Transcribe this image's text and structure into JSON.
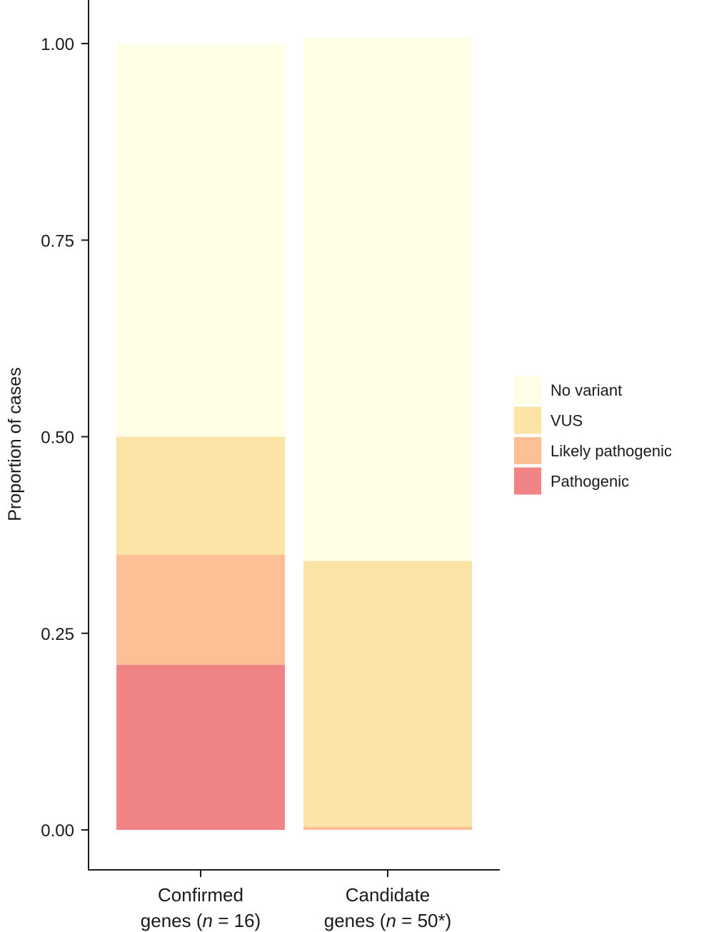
{
  "chart_data": {
    "type": "bar",
    "stacked": true,
    "title": "",
    "xlabel": "",
    "ylabel": "Proportion of cases",
    "ylim": [
      -0.05,
      1.05
    ],
    "yticks": [
      {
        "value": 0.0,
        "label": "0.00"
      },
      {
        "value": 0.25,
        "label": "0.25"
      },
      {
        "value": 0.5,
        "label": "0.50"
      },
      {
        "value": 0.75,
        "label": "0.75"
      },
      {
        "value": 1.0,
        "label": "1.00"
      }
    ],
    "categories": [
      {
        "line1": "Confirmed",
        "prefix": "genes (",
        "n_label": "n",
        "suffix": " = 16)"
      },
      {
        "line1": "Candidate",
        "prefix": "genes (",
        "n_label": "n",
        "suffix": " = 50*)"
      }
    ],
    "series": [
      {
        "name": "Pathogenic",
        "color": "#f08383",
        "values": [
          0.21,
          0.0
        ]
      },
      {
        "name": "Likely pathogenic",
        "color": "#fcbf96",
        "values": [
          0.14,
          0.004
        ]
      },
      {
        "name": "VUS",
        "color": "#fce3a6",
        "values": [
          0.15,
          0.338
        ]
      },
      {
        "name": "No variant",
        "color": "#feffe6",
        "values": [
          0.5,
          0.666
        ]
      }
    ],
    "legend": {
      "position": "right",
      "order": [
        "No variant",
        "VUS",
        "Likely pathogenic",
        "Pathogenic"
      ]
    }
  }
}
